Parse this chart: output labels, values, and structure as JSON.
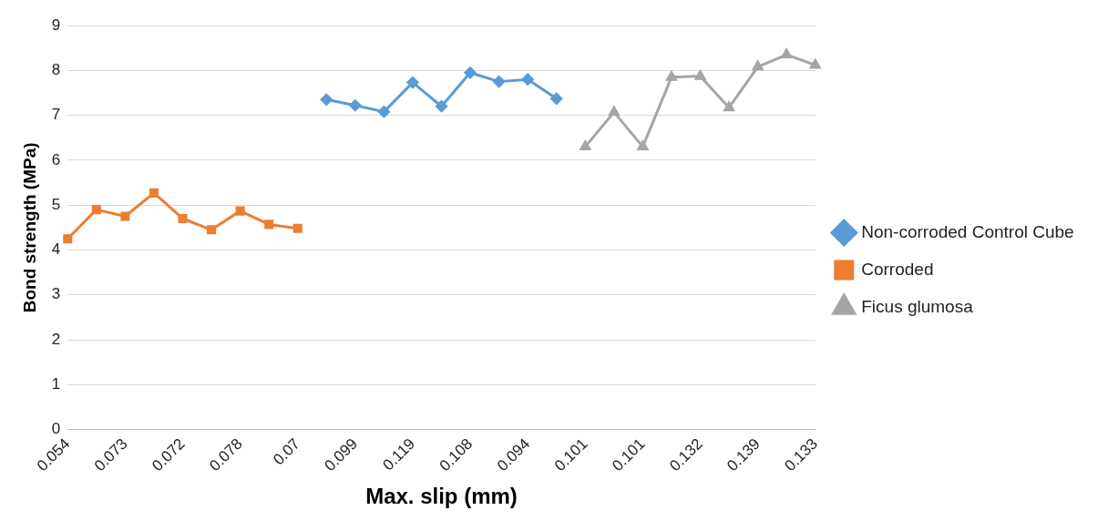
{
  "chart_data": {
    "type": "line",
    "xlabel": "Max. slip (mm)",
    "ylabel": "Bond strength (MPa)",
    "categories": [
      "0.054",
      null,
      "0.073",
      null,
      "0.072",
      null,
      "0.078",
      null,
      "0.07",
      null,
      "0.099",
      null,
      "0.119",
      null,
      "0.108",
      null,
      "0.094",
      null,
      "0.101",
      null,
      "0.101",
      null,
      "0.132",
      null,
      "0.139",
      null,
      "0.133"
    ],
    "series": [
      {
        "name": "Non-corroded Control Cube",
        "color": "#5b9bd5",
        "marker": "diamond",
        "values": [
          null,
          null,
          null,
          null,
          null,
          null,
          null,
          null,
          null,
          7.35,
          7.22,
          7.08,
          7.73,
          7.2,
          7.95,
          7.75,
          7.8,
          7.37,
          null,
          null,
          null,
          null,
          null,
          null,
          null,
          null,
          null
        ]
      },
      {
        "name": "Corroded",
        "color": "#ed7d31",
        "marker": "square",
        "values": [
          4.25,
          4.9,
          4.75,
          5.27,
          4.7,
          4.45,
          4.87,
          4.57,
          4.48,
          null,
          null,
          null,
          null,
          null,
          null,
          null,
          null,
          null,
          null,
          null,
          null,
          null,
          null,
          null,
          null,
          null,
          null
        ]
      },
      {
        "name": "Ficus glumosa",
        "color": "#a5a5a5",
        "marker": "triangle",
        "values": [
          null,
          null,
          null,
          null,
          null,
          null,
          null,
          null,
          null,
          null,
          null,
          null,
          null,
          null,
          null,
          null,
          null,
          null,
          6.3,
          7.07,
          6.3,
          7.85,
          7.87,
          7.17,
          8.08,
          8.35,
          8.12
        ]
      }
    ],
    "ylim": [
      0,
      9
    ],
    "yticks": [
      0,
      1,
      2,
      3,
      4,
      5,
      6,
      7,
      8,
      9
    ],
    "grid": "y",
    "legend": "right",
    "line_style": "solid"
  }
}
